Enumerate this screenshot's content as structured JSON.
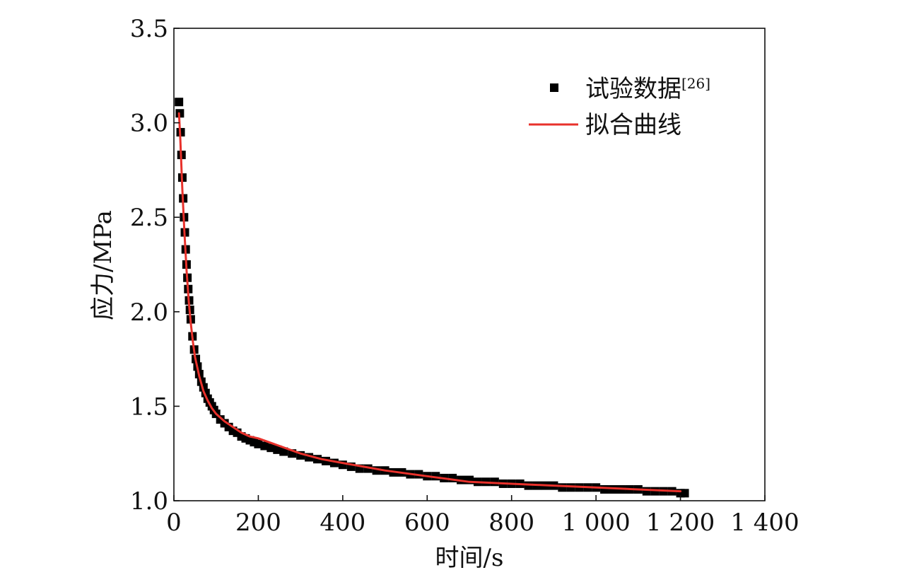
{
  "chart_data": {
    "type": "line",
    "xlabel": "时间/s",
    "ylabel": "应力/MPa",
    "xlim": [
      0,
      1400
    ],
    "ylim": [
      1.0,
      3.5
    ],
    "x_ticks": [
      {
        "value": 0,
        "label": "0"
      },
      {
        "value": 200,
        "label": "200"
      },
      {
        "value": 400,
        "label": "400"
      },
      {
        "value": 600,
        "label": "600"
      },
      {
        "value": 800,
        "label": "800"
      },
      {
        "value": 1000,
        "label": "1 000"
      },
      {
        "value": 1200,
        "label": "1 200"
      },
      {
        "value": 1400,
        "label": "1 400"
      }
    ],
    "y_ticks": [
      {
        "value": 1.0,
        "label": "1.0"
      },
      {
        "value": 1.5,
        "label": "1.5"
      },
      {
        "value": 2.0,
        "label": "2.0"
      },
      {
        "value": 2.5,
        "label": "2.5"
      },
      {
        "value": 3.0,
        "label": "3.0"
      },
      {
        "value": 3.5,
        "label": "3.5"
      }
    ],
    "grid": false,
    "legend_position": "top-right",
    "series": [
      {
        "name": "试验数据",
        "name_ref": "[26]",
        "kind": "scatter",
        "marker": "square",
        "color": "#000000",
        "x": [
          12,
          14,
          16,
          18,
          20,
          22,
          24,
          26,
          28,
          30,
          32,
          34,
          36,
          38,
          40,
          44,
          48,
          52,
          56,
          60,
          65,
          70,
          75,
          80,
          85,
          90,
          95,
          100,
          110,
          120,
          130,
          140,
          150,
          160,
          170,
          180,
          190,
          200,
          215,
          230,
          245,
          260,
          280,
          300,
          320,
          340,
          360,
          380,
          400,
          420,
          440,
          460,
          480,
          500,
          520,
          540,
          560,
          580,
          600,
          620,
          640,
          660,
          680,
          700,
          720,
          740,
          760,
          780,
          800,
          820,
          840,
          860,
          880,
          900,
          920,
          940,
          960,
          980,
          1000,
          1020,
          1040,
          1060,
          1080,
          1100,
          1120,
          1140,
          1160,
          1180,
          1200,
          1210
        ],
        "y": [
          3.11,
          3.05,
          2.95,
          2.83,
          2.71,
          2.6,
          2.5,
          2.42,
          2.33,
          2.25,
          2.18,
          2.12,
          2.06,
          2.01,
          1.96,
          1.87,
          1.8,
          1.75,
          1.71,
          1.67,
          1.63,
          1.6,
          1.57,
          1.54,
          1.52,
          1.5,
          1.48,
          1.46,
          1.43,
          1.41,
          1.39,
          1.37,
          1.36,
          1.34,
          1.33,
          1.32,
          1.31,
          1.3,
          1.29,
          1.28,
          1.27,
          1.26,
          1.25,
          1.24,
          1.23,
          1.22,
          1.21,
          1.2,
          1.19,
          1.18,
          1.17,
          1.17,
          1.16,
          1.16,
          1.15,
          1.15,
          1.14,
          1.14,
          1.13,
          1.13,
          1.12,
          1.12,
          1.11,
          1.11,
          1.1,
          1.1,
          1.1,
          1.09,
          1.09,
          1.09,
          1.08,
          1.08,
          1.08,
          1.08,
          1.07,
          1.07,
          1.07,
          1.07,
          1.07,
          1.06,
          1.06,
          1.06,
          1.06,
          1.06,
          1.05,
          1.05,
          1.05,
          1.05,
          1.04,
          1.04
        ]
      },
      {
        "name": "拟合曲线",
        "kind": "line",
        "color": "#e8312b",
        "x": [
          12,
          15,
          20,
          25,
          30,
          35,
          40,
          45,
          50,
          60,
          70,
          80,
          90,
          100,
          120,
          140,
          160,
          180,
          200,
          250,
          300,
          350,
          400,
          450,
          500,
          600,
          700,
          800,
          900,
          1000,
          1100,
          1200
        ],
        "y": [
          3.05,
          2.92,
          2.65,
          2.42,
          2.22,
          2.06,
          1.94,
          1.84,
          1.76,
          1.66,
          1.58,
          1.53,
          1.49,
          1.46,
          1.42,
          1.39,
          1.36,
          1.34,
          1.33,
          1.29,
          1.25,
          1.22,
          1.2,
          1.18,
          1.16,
          1.13,
          1.1,
          1.09,
          1.08,
          1.07,
          1.06,
          1.05
        ]
      }
    ]
  }
}
